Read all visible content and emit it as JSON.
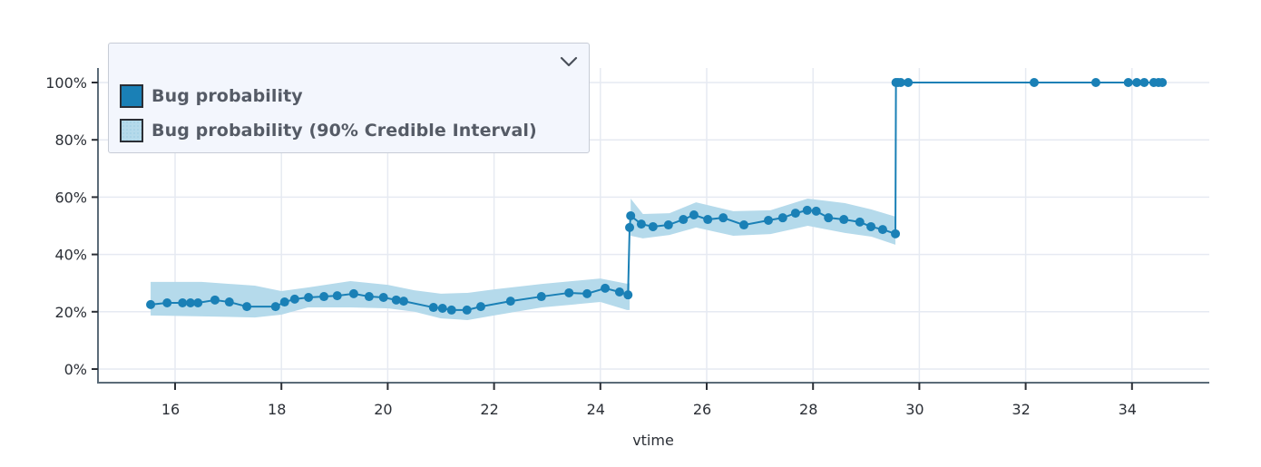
{
  "legend": {
    "items": [
      {
        "label": "Bug probability",
        "type": "line"
      },
      {
        "label": "Bug probability (90% Credible Interval)",
        "type": "band"
      }
    ],
    "toggle_icon": "chevron-down-icon"
  },
  "colors": {
    "line": "#1a80b6",
    "band": "#b5daeb",
    "grid": "#e6eaf2",
    "axis": "#5b6b78",
    "legend_bg": "#f3f6fd"
  },
  "chart_data": {
    "type": "line",
    "title": "",
    "xlabel": "vtime",
    "ylabel": "",
    "xlim": [
      14.55,
      35.45
    ],
    "ylim": [
      -5,
      105
    ],
    "x_ticks": [
      16,
      18,
      20,
      22,
      24,
      26,
      28,
      30,
      32,
      34
    ],
    "x_tick_labels": [
      "16",
      "18",
      "20",
      "22",
      "24",
      "26",
      "28",
      "30",
      "32",
      "34"
    ],
    "y_ticks": [
      0,
      20,
      40,
      60,
      80,
      100
    ],
    "y_tick_labels": [
      "0%",
      "20%",
      "40%",
      "60%",
      "80%",
      "100%"
    ],
    "grid": true,
    "legend_position": "top-left",
    "series": [
      {
        "name": "Bug probability",
        "type": "line+markers",
        "x": [
          15.54,
          15.85,
          16.14,
          16.29,
          16.43,
          16.75,
          17.02,
          17.35,
          17.89,
          18.06,
          18.25,
          18.51,
          18.8,
          19.05,
          19.36,
          19.65,
          19.92,
          20.16,
          20.3,
          20.86,
          21.03,
          21.2,
          21.49,
          21.75,
          22.31,
          22.89,
          23.41,
          23.75,
          24.09,
          24.36,
          24.52,
          24.55,
          24.57,
          24.77,
          24.99,
          25.28,
          25.56,
          25.76,
          26.02,
          26.31,
          26.7,
          27.16,
          27.43,
          27.67,
          27.89,
          28.06,
          28.29,
          28.58,
          28.88,
          29.09,
          29.31,
          29.55,
          29.56,
          29.6,
          29.65,
          29.79,
          32.16,
          33.32,
          33.93,
          34.09,
          34.23,
          34.41,
          34.5,
          34.57
        ],
        "y": [
          22.5,
          23.1,
          23.1,
          23.1,
          23.1,
          24.1,
          23.4,
          21.8,
          21.8,
          23.4,
          24.4,
          25.0,
          25.3,
          25.6,
          26.3,
          25.3,
          25.0,
          24.1,
          23.7,
          21.5,
          21.2,
          20.6,
          20.6,
          21.8,
          23.7,
          25.3,
          26.6,
          26.3,
          28.2,
          26.9,
          25.9,
          49.4,
          53.5,
          50.6,
          49.7,
          50.3,
          52.2,
          53.8,
          52.2,
          52.8,
          50.3,
          51.9,
          52.8,
          54.4,
          55.4,
          55.1,
          52.8,
          52.2,
          51.3,
          49.7,
          48.7,
          47.2,
          100,
          100,
          100,
          100,
          100,
          100,
          100,
          100,
          100,
          100,
          100,
          100
        ]
      },
      {
        "name": "Bug probability (90% Credible Interval)",
        "type": "band",
        "x": [
          15.54,
          16.5,
          17.5,
          18.0,
          18.5,
          19.3,
          20.0,
          20.5,
          21.0,
          21.5,
          22.0,
          22.9,
          24.0,
          24.5,
          24.55,
          24.57,
          24.8,
          25.3,
          25.8,
          26.5,
          27.2,
          27.9,
          28.6,
          29.1,
          29.55
        ],
        "lo": [
          18.7,
          18.4,
          18.0,
          19.0,
          21.5,
          21.5,
          21.2,
          20.0,
          17.7,
          17.1,
          18.7,
          21.5,
          23.4,
          20.6,
          20.6,
          46.5,
          45.6,
          46.8,
          49.4,
          46.5,
          47.1,
          50.0,
          47.5,
          46.2,
          43.4
        ],
        "hi": [
          30.4,
          30.4,
          29.1,
          27.2,
          28.5,
          30.7,
          29.4,
          27.5,
          26.3,
          26.6,
          27.8,
          29.7,
          31.6,
          29.8,
          30.0,
          59.5,
          54.1,
          54.4,
          58.2,
          55.1,
          55.4,
          59.5,
          57.9,
          55.7,
          53.2
        ]
      }
    ]
  }
}
